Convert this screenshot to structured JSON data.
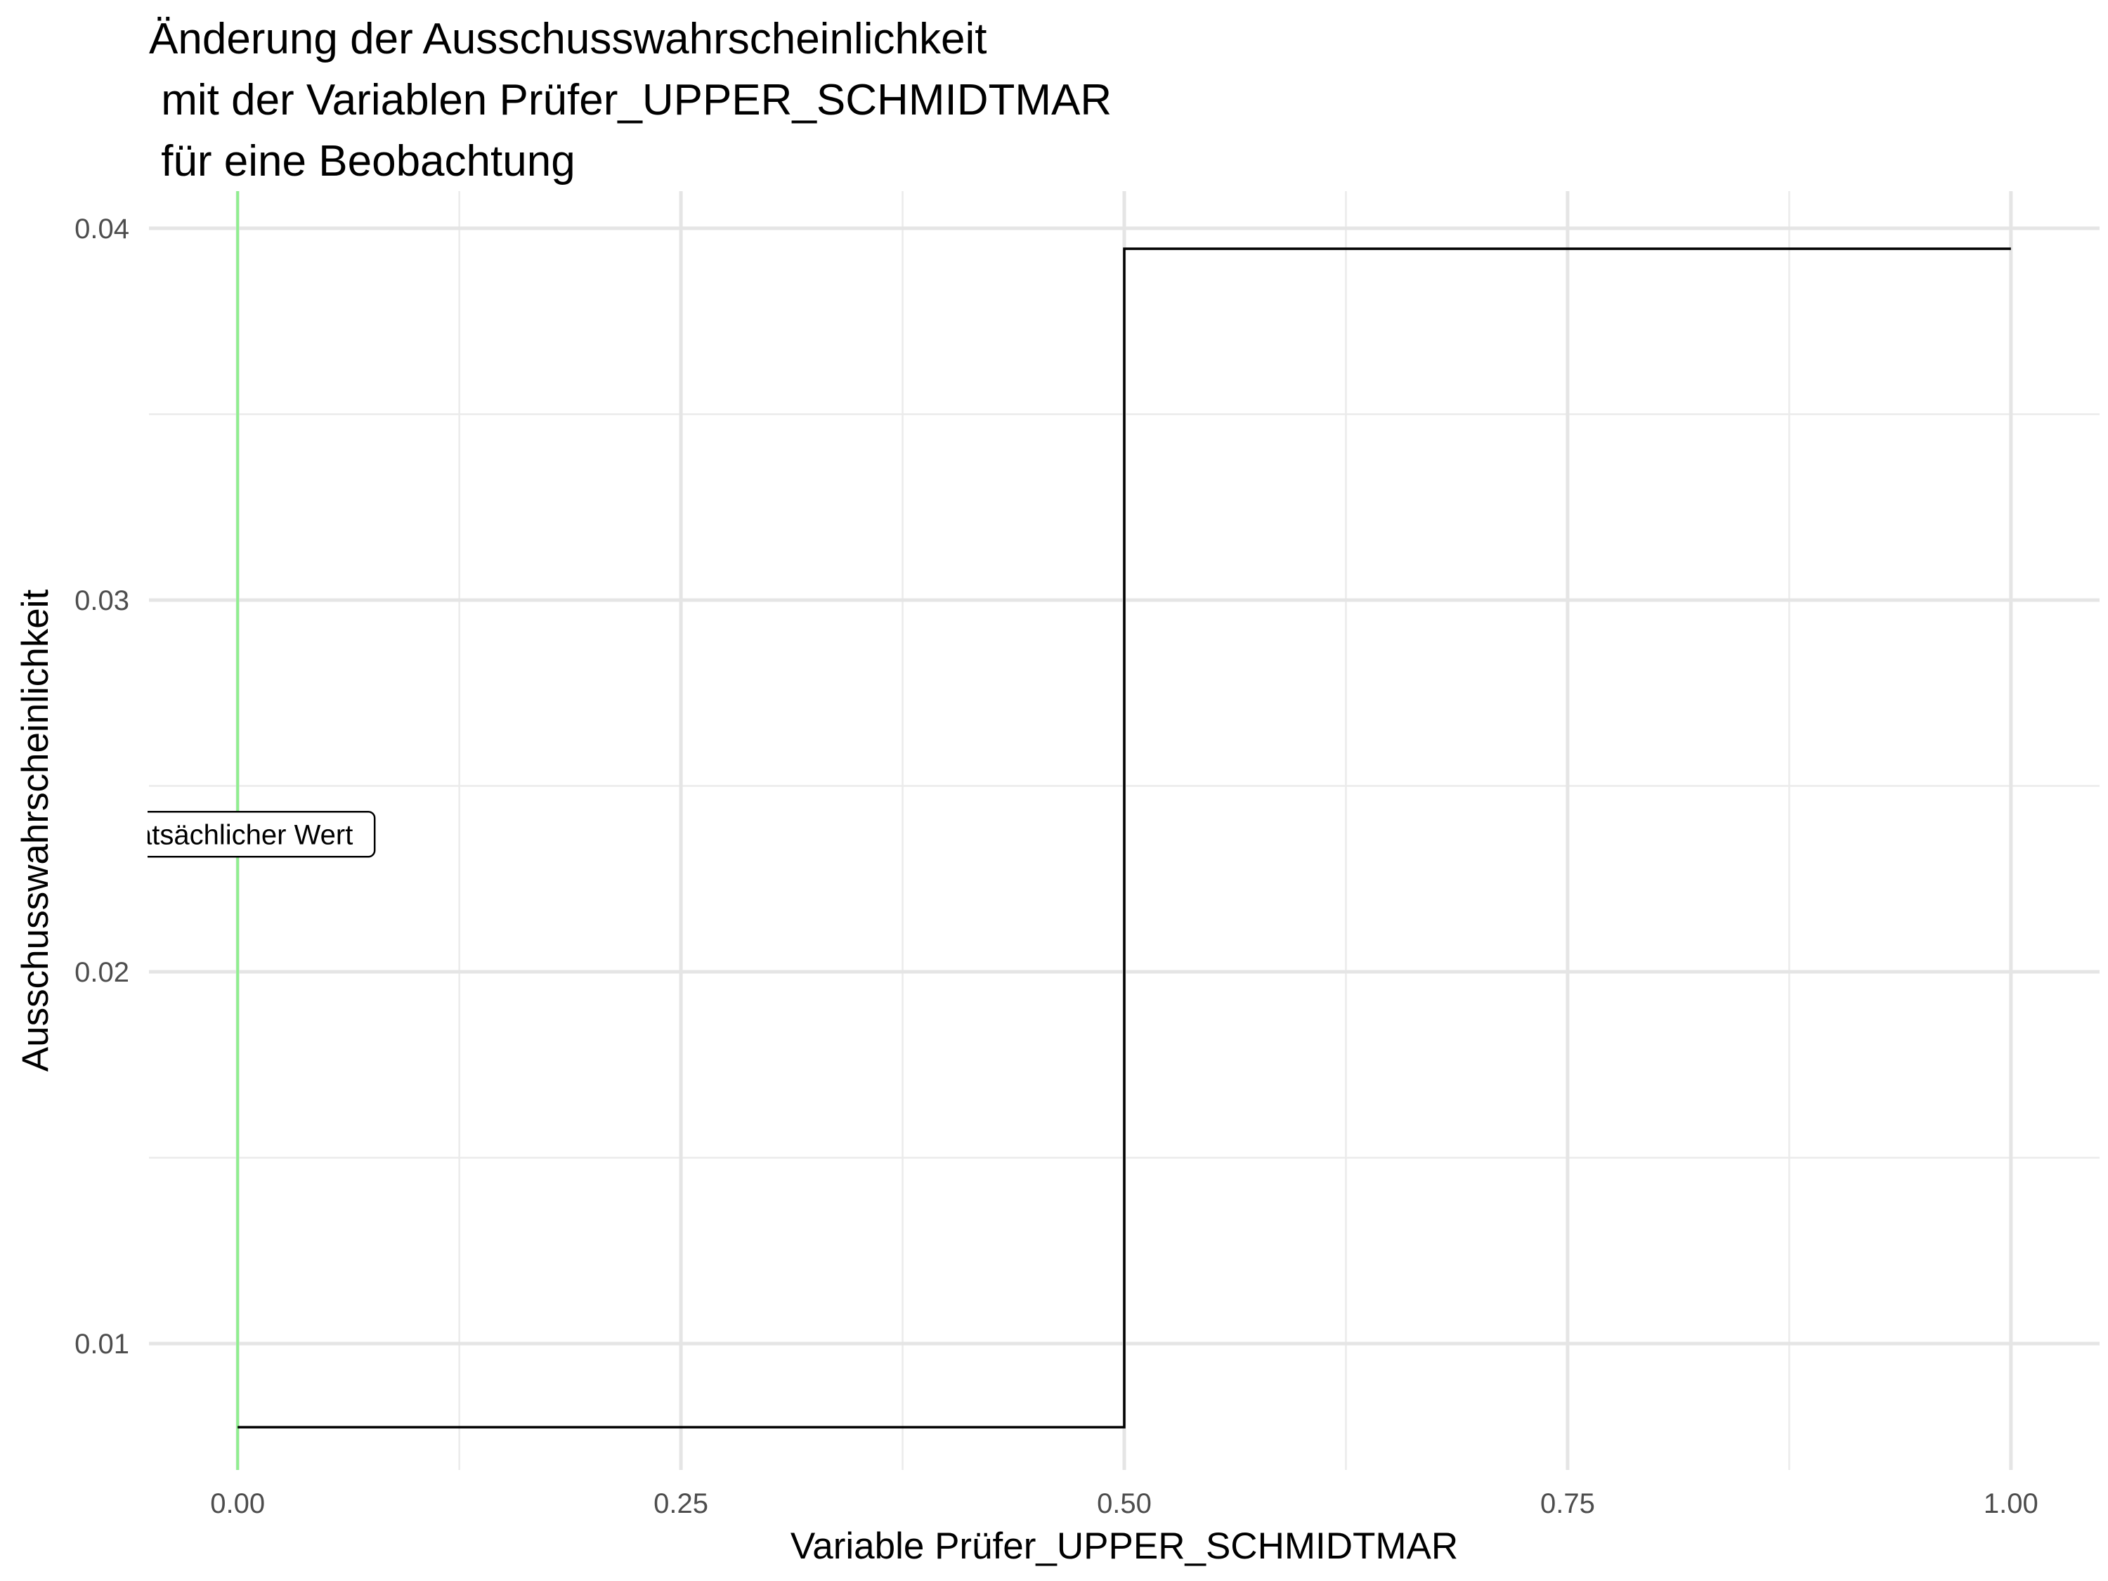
{
  "chart_data": {
    "type": "line",
    "title_lines": [
      "Änderung der Ausschusswahrscheinlichkeit",
      " mit der Variablen Prüfer_UPPER_SCHMIDTMAR",
      " für eine Beobachtung"
    ],
    "xlabel": "Variable Prüfer_UPPER_SCHMIDTMAR",
    "ylabel": "Ausschusswahrscheinlichkeit",
    "x_ticks": [
      0,
      0.25,
      0.5,
      0.75,
      1
    ],
    "x_tick_labels": [
      "0.00",
      "0.25",
      "0.50",
      "0.75",
      "1.00"
    ],
    "y_ticks": [
      0.01,
      0.02,
      0.03,
      0.04
    ],
    "y_tick_labels": [
      "0.01",
      "0.02",
      "0.03",
      "0.04"
    ],
    "xlim": [
      -0.05,
      1.05
    ],
    "ylim": [
      0.0066,
      0.041
    ],
    "series": [
      {
        "step": "hv",
        "x": [
          0,
          0.5,
          1
        ],
        "y": [
          0.00775,
          0.03945,
          0.03945
        ]
      }
    ],
    "reference_line": {
      "x": 0,
      "color": "#90ee90",
      "label": "Tatsächlicher Wert",
      "label_y": 0.0237
    },
    "grid": true,
    "line_color": "#000000"
  }
}
